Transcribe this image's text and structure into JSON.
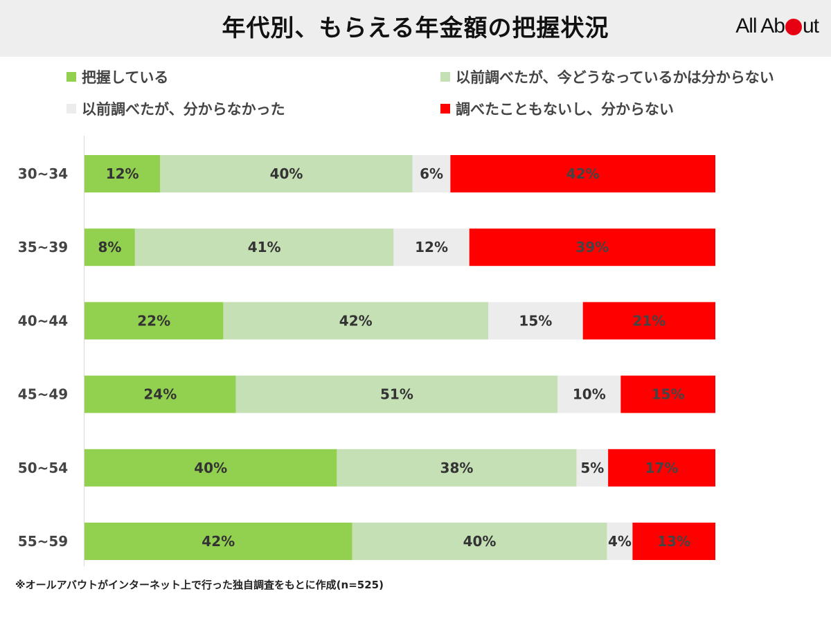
{
  "title": "年代別、もらえる年金額の把握状況",
  "logo": {
    "left": "All Ab",
    "right": "ut"
  },
  "footnote": "※オールアバウトがインターネット上で行った独自調査をもとに作成(n=525)",
  "chart_data": {
    "type": "bar",
    "orientation": "horizontal",
    "stacked": true,
    "categories": [
      "30~34",
      "35~39",
      "40~44",
      "45~49",
      "50~54",
      "55~59"
    ],
    "series": [
      {
        "name": "把握している",
        "color": "#92d050",
        "label_color": "#333333",
        "values": [
          12,
          8,
          22,
          24,
          40,
          42
        ]
      },
      {
        "name": "以前調べたが、今どうなっているかは分からない",
        "color": "#c5e0b4",
        "label_color": "#333333",
        "values": [
          40,
          41,
          42,
          51,
          38,
          40
        ]
      },
      {
        "name": "以前調べたが、分からなかった",
        "color": "#ececec",
        "label_color": "#333333",
        "values": [
          6,
          12,
          15,
          10,
          5,
          4
        ]
      },
      {
        "name": "調べたこともないし、分からない",
        "color": "#ff0000",
        "label_color": "#444444",
        "values": [
          42,
          39,
          21,
          15,
          17,
          13
        ]
      }
    ],
    "value_suffix": "%",
    "legend_position": "top",
    "grid": false
  }
}
